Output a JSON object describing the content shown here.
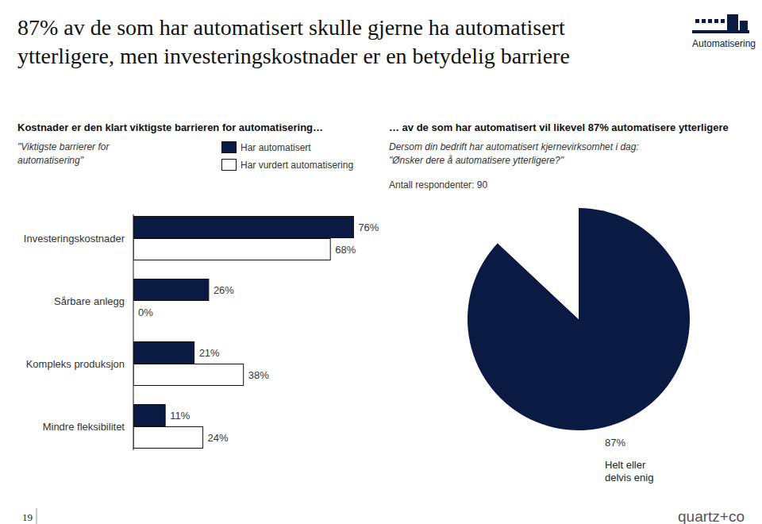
{
  "page": {
    "title": [
      "87% av de som har automatisert skulle gjerne ha automatisert",
      "ytterligere, men investeringskostnader er en betydelig barriere"
    ],
    "badge": "Automatisering",
    "page_number": "19",
    "brand": "quartz+co"
  },
  "chart_data": [
    {
      "type": "bar",
      "orientation": "horizontal",
      "title": "Kostnader er den klart viktigste barrieren for automatisering…",
      "subtitle": [
        "\"Viktigste barrierer for",
        "automatisering\""
      ],
      "categories": [
        "Investeringskostnader",
        "Sårbare anlegg",
        "Kompleks produksjon",
        "Mindre fleksibilitet"
      ],
      "series": [
        {
          "name": "Har automatisert",
          "color": "#0b1a42",
          "values": [
            76,
            26,
            21,
            11
          ],
          "value_labels": [
            "76%",
            "26%",
            "21%",
            "11%"
          ]
        },
        {
          "name": "Har vurdert automatisering",
          "color": "#ffffff",
          "values": [
            68,
            0,
            38,
            24
          ],
          "value_labels": [
            "68%",
            "0%",
            "38%",
            "24%"
          ]
        }
      ],
      "xlim": [
        0,
        100
      ],
      "data_labels": true,
      "tick_labels": "y",
      "legend": "top",
      "grid": false
    },
    {
      "type": "pie",
      "title": "… av de som har automatisert vil likevel 87% automatisere ytterligere",
      "subtitle": [
        "Dersom din bedrift har automatisert kjernevirksomhet i dag:",
        "\"Ønsker dere å automatisere ytterligere?\""
      ],
      "annotation": "Antall respondenter: 90",
      "categories": [
        "Helt eller delvis enig",
        null
      ],
      "values": [
        87,
        13
      ],
      "value_labels": [
        "87%",
        null
      ],
      "colors": [
        "#0b1a42",
        "#ffffff"
      ],
      "data_labels": true
    }
  ]
}
